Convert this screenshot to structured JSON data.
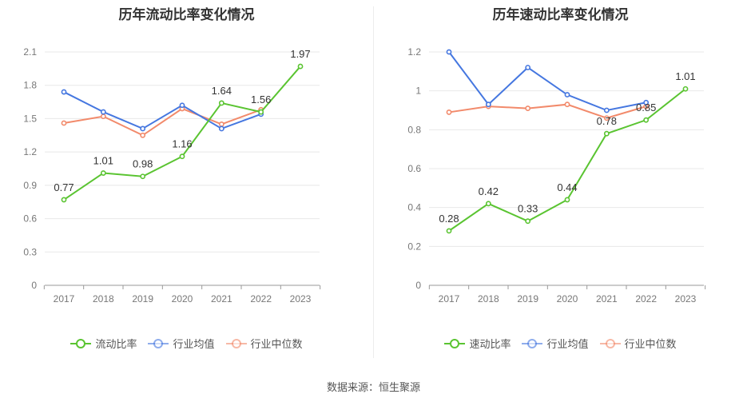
{
  "source_text": "数据来源：恒生聚源",
  "chart_data": [
    {
      "type": "line",
      "title": "历年流动比率变化情况",
      "categories": [
        "2017",
        "2018",
        "2019",
        "2020",
        "2021",
        "2022",
        "2023"
      ],
      "ylim": [
        0,
        2.1
      ],
      "yticks": [
        "0",
        "0.3",
        "0.6",
        "0.9",
        "1.2",
        "1.5",
        "1.8",
        "2.1"
      ],
      "grid": true,
      "legend_position": "bottom",
      "series": [
        {
          "name": "流动比率",
          "color": "#5ac431",
          "values": [
            0.77,
            1.01,
            0.98,
            1.16,
            1.64,
            1.56,
            1.97
          ],
          "data_labels": [
            "0.77",
            "1.01",
            "0.98",
            "1.16",
            "1.64",
            "1.56",
            "1.97"
          ]
        },
        {
          "name": "行业均值",
          "color": "#4577e0",
          "values": [
            1.74,
            1.56,
            1.41,
            1.62,
            1.41,
            1.54,
            null
          ]
        },
        {
          "name": "行业中位数",
          "color": "#f28a6b",
          "values": [
            1.46,
            1.52,
            1.35,
            1.59,
            1.45,
            1.58,
            null
          ]
        }
      ]
    },
    {
      "type": "line",
      "title": "历年速动比率变化情况",
      "categories": [
        "2017",
        "2018",
        "2019",
        "2020",
        "2021",
        "2022",
        "2023"
      ],
      "ylim": [
        0,
        1.2
      ],
      "yticks": [
        "0",
        "0.2",
        "0.4",
        "0.6",
        "0.8",
        "1",
        "1.2"
      ],
      "grid": true,
      "legend_position": "bottom",
      "series": [
        {
          "name": "速动比率",
          "color": "#5ac431",
          "values": [
            0.28,
            0.42,
            0.33,
            0.44,
            0.78,
            0.85,
            1.01
          ],
          "data_labels": [
            "0.28",
            "0.42",
            "0.33",
            "0.44",
            "0.78",
            "0.85",
            "1.01"
          ]
        },
        {
          "name": "行业均值",
          "color": "#4577e0",
          "values": [
            1.2,
            0.93,
            1.12,
            0.98,
            0.9,
            0.94,
            null
          ]
        },
        {
          "name": "行业中位数",
          "color": "#f28a6b",
          "values": [
            0.89,
            0.92,
            0.91,
            0.93,
            0.86,
            0.92,
            null
          ]
        }
      ]
    }
  ]
}
